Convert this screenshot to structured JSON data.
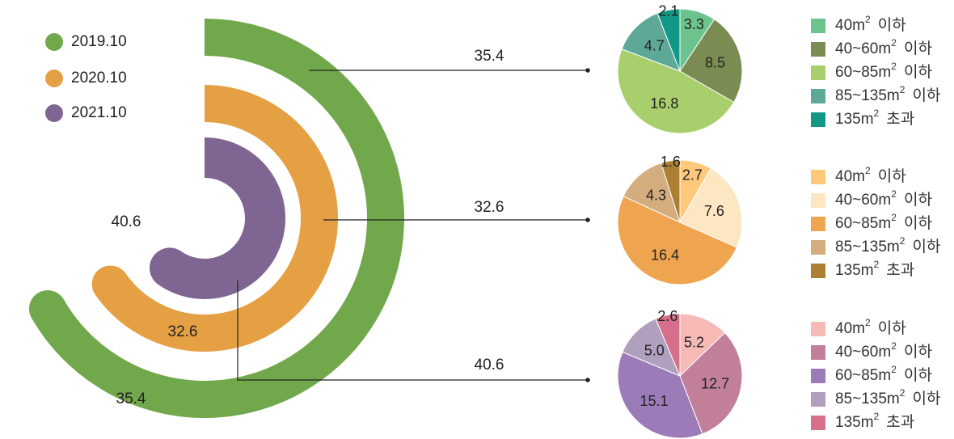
{
  "chart_data": [
    {
      "type": "radial_bar",
      "legend": [
        {
          "label": "2019.10",
          "color": "#72a84c"
        },
        {
          "label": "2020.10",
          "color": "#e5a043"
        },
        {
          "label": "2021.10",
          "color": "#7f6591"
        }
      ],
      "series": [
        {
          "name": "2019.10",
          "value": 35.4,
          "value_label": "35.4",
          "color": "#72a84c"
        },
        {
          "name": "2020.10",
          "value": 32.6,
          "value_label": "32.6",
          "color": "#e5a043"
        },
        {
          "name": "2021.10",
          "value": 40.6,
          "value_label": "40.6",
          "color": "#7f6591"
        }
      ]
    },
    {
      "type": "pie",
      "series_name": "2019.10",
      "categories": [
        "40m² 이하",
        "40~60m² 이하",
        "60~85m² 이하",
        "85~135m² 이하",
        "135m² 초과"
      ],
      "values": [
        3.3,
        8.5,
        16.8,
        4.7,
        2.1
      ],
      "labels": [
        "3.3",
        "8.5",
        "16.8",
        "4.7",
        "2.1"
      ],
      "colors": [
        "#6cc38d",
        "#7a8c52",
        "#a8cf6b",
        "#5ea898",
        "#129886"
      ],
      "legend_labels": [
        "40m² 이하",
        "40~60m² 이하",
        "60~85m² 이하",
        "85~135m² 이하",
        "135m² 초과"
      ]
    },
    {
      "type": "pie",
      "series_name": "2020.10",
      "categories": [
        "40m² 이하",
        "40~60m² 이하",
        "60~85m² 이하",
        "85~135m² 이하",
        "135m² 초과"
      ],
      "values": [
        2.7,
        7.6,
        16.4,
        4.3,
        1.6
      ],
      "labels": [
        "2.7",
        "7.6",
        "16.4",
        "4.3",
        "1.6"
      ],
      "colors": [
        "#ffc87a",
        "#fde6c2",
        "#efa44f",
        "#d4ad7e",
        "#ad7f33"
      ],
      "legend_labels": [
        "40m² 이하",
        "40~60m² 이하",
        "60~85m² 이하",
        "85~135m² 이하",
        "135m² 초과"
      ]
    },
    {
      "type": "pie",
      "series_name": "2021.10",
      "categories": [
        "40m² 이하",
        "40~60m² 이하",
        "60~85m² 이하",
        "85~135m² 이하",
        "135m² 초과"
      ],
      "values": [
        5.2,
        12.7,
        15.1,
        5.0,
        2.6
      ],
      "labels": [
        "5.2",
        "12.7",
        "15.1",
        "5.0",
        "2.6"
      ],
      "colors": [
        "#f6b9b6",
        "#c17f9a",
        "#9b7cb9",
        "#b19fbe",
        "#d6708a"
      ],
      "legend_labels": [
        "40m² 이하",
        "40~60m² 이하",
        "60~85m² 이하",
        "85~135m² 이하",
        "135m² 초과"
      ]
    }
  ]
}
